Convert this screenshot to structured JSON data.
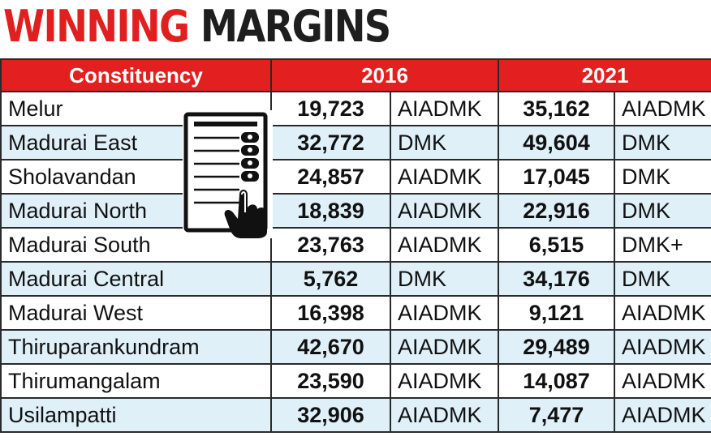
{
  "title": {
    "part1": "WINNING",
    "part2": "MARGINS"
  },
  "headers": {
    "constituency": "Constituency",
    "year1": "2016",
    "year2": "2021"
  },
  "colors": {
    "title_red": "#e0201f",
    "header_bg": "#e2201f",
    "stripe": "#dff0f9"
  },
  "icons": {
    "evm": "voting-machine-icon"
  },
  "chart_data": {
    "type": "table",
    "title": "WINNING MARGINS",
    "columns": [
      "Constituency",
      "2016",
      "2021"
    ],
    "rows": [
      {
        "constituency": "Melur",
        "margin_2016": "19,723",
        "party_2016": "AIADMK",
        "margin_2021": "35,162",
        "party_2021": "AIADMK"
      },
      {
        "constituency": "Madurai East",
        "margin_2016": "32,772",
        "party_2016": "DMK",
        "margin_2021": "49,604",
        "party_2021": "DMK"
      },
      {
        "constituency": "Sholavandan",
        "margin_2016": "24,857",
        "party_2016": "AIADMK",
        "margin_2021": "17,045",
        "party_2021": "DMK"
      },
      {
        "constituency": "Madurai North",
        "margin_2016": "18,839",
        "party_2016": "AIADMK",
        "margin_2021": "22,916",
        "party_2021": "DMK"
      },
      {
        "constituency": "Madurai South",
        "margin_2016": "23,763",
        "party_2016": "AIADMK",
        "margin_2021": "6,515",
        "party_2021": "DMK+"
      },
      {
        "constituency": "Madurai Central",
        "margin_2016": "5,762",
        "party_2016": "DMK",
        "margin_2021": "34,176",
        "party_2021": "DMK"
      },
      {
        "constituency": "Madurai West",
        "margin_2016": "16,398",
        "party_2016": "AIADMK",
        "margin_2021": "9,121",
        "party_2021": "AIADMK"
      },
      {
        "constituency": "Thiruparankundram",
        "margin_2016": "42,670",
        "party_2016": "AIADMK",
        "margin_2021": "29,489",
        "party_2021": "AIADMK"
      },
      {
        "constituency": "Thirumangalam",
        "margin_2016": "23,590",
        "party_2016": "AIADMK",
        "margin_2021": "14,087",
        "party_2021": "AIADMK"
      },
      {
        "constituency": "Usilampatti",
        "margin_2016": "32,906",
        "party_2016": "AIADMK",
        "margin_2021": "7,477",
        "party_2021": "AIADMK"
      }
    ]
  }
}
